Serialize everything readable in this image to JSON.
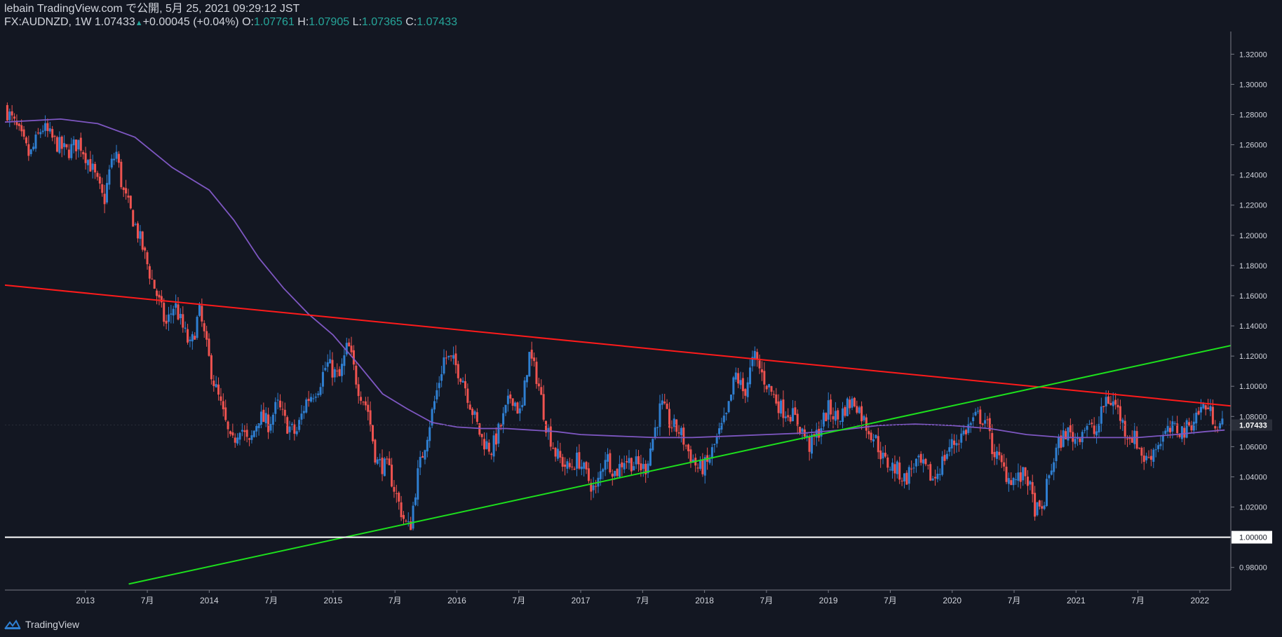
{
  "header": {
    "line1": "lebain TradingView.com で公開, 5月 25, 2021 09:29:12 JST",
    "symbol": "FX:AUDNZD, 1W",
    "last": "1.07433",
    "change": "+0.00045 (+0.04%)",
    "o_label": "O:",
    "o_value": "1.07761",
    "h_label": "H:",
    "h_value": "1.07905",
    "l_label": "L:",
    "l_value": "1.07365",
    "c_label": "C:",
    "c_value": "1.07433"
  },
  "brand": {
    "name": "TradingView"
  },
  "colors": {
    "background": "#131722",
    "up": "#2f7fd1",
    "down": "#ef5350",
    "ma": "#7e57c2",
    "resistance": "#ff1b1b",
    "support": "#1de01d",
    "parity": "#ffffff",
    "text": "#d1d4dc"
  },
  "chart_data": {
    "type": "candlestick",
    "symbol": "FX:AUDNZD",
    "interval": "1W",
    "grid": false,
    "ylim": [
      0.965,
      1.335
    ],
    "x_range": [
      2012.35,
      2022.25
    ],
    "y_ticks": [
      "1.32000",
      "1.30000",
      "1.28000",
      "1.26000",
      "1.24000",
      "1.22000",
      "1.20000",
      "1.18000",
      "1.16000",
      "1.14000",
      "1.12000",
      "1.10000",
      "1.08000",
      "1.06000",
      "1.04000",
      "1.02000",
      "1.00000",
      "0.98000"
    ],
    "last_price_label": "1.07433",
    "x_ticks": [
      {
        "t": 2013.0,
        "label": "2013"
      },
      {
        "t": 2013.5,
        "label": "7月"
      },
      {
        "t": 2014.0,
        "label": "2014"
      },
      {
        "t": 2014.5,
        "label": "7月"
      },
      {
        "t": 2015.0,
        "label": "2015"
      },
      {
        "t": 2015.5,
        "label": "7月"
      },
      {
        "t": 2016.0,
        "label": "2016"
      },
      {
        "t": 2016.5,
        "label": "7月"
      },
      {
        "t": 2017.0,
        "label": "2017"
      },
      {
        "t": 2017.5,
        "label": "7月"
      },
      {
        "t": 2018.0,
        "label": "2018"
      },
      {
        "t": 2018.5,
        "label": "7月"
      },
      {
        "t": 2019.0,
        "label": "2019"
      },
      {
        "t": 2019.5,
        "label": "7月"
      },
      {
        "t": 2020.0,
        "label": "2020"
      },
      {
        "t": 2020.5,
        "label": "7月"
      },
      {
        "t": 2021.0,
        "label": "2021"
      },
      {
        "t": 2021.5,
        "label": "7月"
      },
      {
        "t": 2022.0,
        "label": "2022"
      }
    ],
    "price_path": [
      [
        2012.35,
        1.285
      ],
      [
        2012.45,
        1.27
      ],
      [
        2012.55,
        1.252
      ],
      [
        2012.65,
        1.272
      ],
      [
        2012.75,
        1.262
      ],
      [
        2012.85,
        1.255
      ],
      [
        2012.95,
        1.262
      ],
      [
        2013.05,
        1.245
      ],
      [
        2013.15,
        1.222
      ],
      [
        2013.2,
        1.245
      ],
      [
        2013.25,
        1.255
      ],
      [
        2013.3,
        1.23
      ],
      [
        2013.38,
        1.212
      ],
      [
        2013.45,
        1.195
      ],
      [
        2013.52,
        1.175
      ],
      [
        2013.58,
        1.16
      ],
      [
        2013.65,
        1.14
      ],
      [
        2013.72,
        1.155
      ],
      [
        2013.78,
        1.14
      ],
      [
        2013.85,
        1.125
      ],
      [
        2013.92,
        1.15
      ],
      [
        2013.98,
        1.125
      ],
      [
        2014.03,
        1.105
      ],
      [
        2014.1,
        1.085
      ],
      [
        2014.18,
        1.06
      ],
      [
        2014.25,
        1.075
      ],
      [
        2014.32,
        1.06
      ],
      [
        2014.4,
        1.08
      ],
      [
        2014.48,
        1.075
      ],
      [
        2014.55,
        1.088
      ],
      [
        2014.62,
        1.075
      ],
      [
        2014.7,
        1.068
      ],
      [
        2014.78,
        1.09
      ],
      [
        2014.88,
        1.1
      ],
      [
        2014.95,
        1.115
      ],
      [
        2015.05,
        1.105
      ],
      [
        2015.12,
        1.128
      ],
      [
        2015.2,
        1.1
      ],
      [
        2015.28,
        1.085
      ],
      [
        2015.35,
        1.05
      ],
      [
        2015.45,
        1.045
      ],
      [
        2015.52,
        1.025
      ],
      [
        2015.58,
        1.01
      ],
      [
        2015.62,
        1.005
      ],
      [
        2015.68,
        1.04
      ],
      [
        2015.75,
        1.065
      ],
      [
        2015.82,
        1.09
      ],
      [
        2015.9,
        1.12
      ],
      [
        2015.98,
        1.115
      ],
      [
        2016.05,
        1.105
      ],
      [
        2016.12,
        1.085
      ],
      [
        2016.2,
        1.065
      ],
      [
        2016.28,
        1.058
      ],
      [
        2016.36,
        1.075
      ],
      [
        2016.44,
        1.095
      ],
      [
        2016.52,
        1.08
      ],
      [
        2016.58,
        1.122
      ],
      [
        2016.65,
        1.105
      ],
      [
        2016.72,
        1.075
      ],
      [
        2016.8,
        1.055
      ],
      [
        2016.9,
        1.045
      ],
      [
        2016.98,
        1.052
      ],
      [
        2017.05,
        1.04
      ],
      [
        2017.12,
        1.03
      ],
      [
        2017.2,
        1.055
      ],
      [
        2017.28,
        1.042
      ],
      [
        2017.35,
        1.052
      ],
      [
        2017.45,
        1.048
      ],
      [
        2017.52,
        1.045
      ],
      [
        2017.58,
        1.065
      ],
      [
        2017.65,
        1.088
      ],
      [
        2017.72,
        1.075
      ],
      [
        2017.8,
        1.07
      ],
      [
        2017.88,
        1.055
      ],
      [
        2017.95,
        1.045
      ],
      [
        2018.02,
        1.048
      ],
      [
        2018.1,
        1.065
      ],
      [
        2018.18,
        1.08
      ],
      [
        2018.25,
        1.108
      ],
      [
        2018.32,
        1.095
      ],
      [
        2018.4,
        1.12
      ],
      [
        2018.48,
        1.105
      ],
      [
        2018.55,
        1.095
      ],
      [
        2018.62,
        1.085
      ],
      [
        2018.7,
        1.082
      ],
      [
        2018.78,
        1.072
      ],
      [
        2018.85,
        1.06
      ],
      [
        2018.92,
        1.07
      ],
      [
        2019.0,
        1.085
      ],
      [
        2019.08,
        1.078
      ],
      [
        2019.15,
        1.088
      ],
      [
        2019.22,
        1.09
      ],
      [
        2019.3,
        1.075
      ],
      [
        2019.38,
        1.065
      ],
      [
        2019.45,
        1.05
      ],
      [
        2019.55,
        1.045
      ],
      [
        2019.62,
        1.038
      ],
      [
        2019.7,
        1.05
      ],
      [
        2019.78,
        1.045
      ],
      [
        2019.85,
        1.038
      ],
      [
        2019.92,
        1.05
      ],
      [
        2019.98,
        1.06
      ],
      [
        2020.05,
        1.065
      ],
      [
        2020.12,
        1.072
      ],
      [
        2020.2,
        1.08
      ],
      [
        2020.27,
        1.078
      ],
      [
        2020.32,
        1.06
      ],
      [
        2020.38,
        1.05
      ],
      [
        2020.45,
        1.04
      ],
      [
        2020.52,
        1.038
      ],
      [
        2020.6,
        1.042
      ],
      [
        2020.66,
        1.02
      ],
      [
        2020.72,
        1.015
      ],
      [
        2020.78,
        1.04
      ],
      [
        2020.85,
        1.06
      ],
      [
        2020.92,
        1.07
      ],
      [
        2021.0,
        1.065
      ],
      [
        2021.08,
        1.075
      ],
      [
        2021.16,
        1.068
      ],
      [
        2021.24,
        1.092
      ],
      [
        2021.32,
        1.088
      ],
      [
        2021.4,
        1.07
      ],
      [
        2021.48,
        1.065
      ],
      [
        2021.56,
        1.05
      ],
      [
        2021.64,
        1.06
      ],
      [
        2021.72,
        1.068
      ],
      [
        2021.8,
        1.072
      ],
      [
        2021.88,
        1.07
      ],
      [
        2021.96,
        1.08
      ],
      [
        2022.04,
        1.088
      ],
      [
        2022.1,
        1.08
      ],
      [
        2022.15,
        1.075
      ],
      [
        2022.2,
        1.074
      ]
    ],
    "moving_average": {
      "name": "",
      "points": [
        [
          2012.35,
          1.275
        ],
        [
          2012.8,
          1.277
        ],
        [
          2013.1,
          1.274
        ],
        [
          2013.4,
          1.265
        ],
        [
          2013.7,
          1.245
        ],
        [
          2014.0,
          1.23
        ],
        [
          2014.2,
          1.21
        ],
        [
          2014.4,
          1.185
        ],
        [
          2014.6,
          1.165
        ],
        [
          2014.8,
          1.148
        ],
        [
          2015.0,
          1.134
        ],
        [
          2015.2,
          1.115
        ],
        [
          2015.4,
          1.095
        ],
        [
          2015.6,
          1.085
        ],
        [
          2015.8,
          1.076
        ],
        [
          2016.0,
          1.073
        ],
        [
          2016.2,
          1.072
        ],
        [
          2016.4,
          1.072
        ],
        [
          2016.6,
          1.071
        ],
        [
          2016.8,
          1.07
        ],
        [
          2017.0,
          1.068
        ],
        [
          2017.3,
          1.067
        ],
        [
          2017.6,
          1.066
        ],
        [
          2017.9,
          1.066
        ],
        [
          2018.2,
          1.067
        ],
        [
          2018.5,
          1.068
        ],
        [
          2018.8,
          1.069
        ],
        [
          2019.1,
          1.071
        ],
        [
          2019.4,
          1.074
        ],
        [
          2019.7,
          1.075
        ],
        [
          2020.0,
          1.074
        ],
        [
          2020.3,
          1.072
        ],
        [
          2020.6,
          1.068
        ],
        [
          2020.9,
          1.066
        ],
        [
          2021.2,
          1.066
        ],
        [
          2021.5,
          1.066
        ],
        [
          2021.8,
          1.068
        ],
        [
          2022.05,
          1.07
        ],
        [
          2022.2,
          1.071
        ]
      ]
    },
    "trendlines": [
      {
        "role": "resistance",
        "x1": 2012.35,
        "y1": 1.167,
        "x2": 2022.25,
        "y2": 1.087
      },
      {
        "role": "support",
        "x1": 2013.35,
        "y1": 0.969,
        "x2": 2022.25,
        "y2": 1.127
      },
      {
        "role": "horizontal",
        "x1": 2012.35,
        "y1": 1.0,
        "x2": 2022.25,
        "y2": 1.0
      }
    ]
  }
}
